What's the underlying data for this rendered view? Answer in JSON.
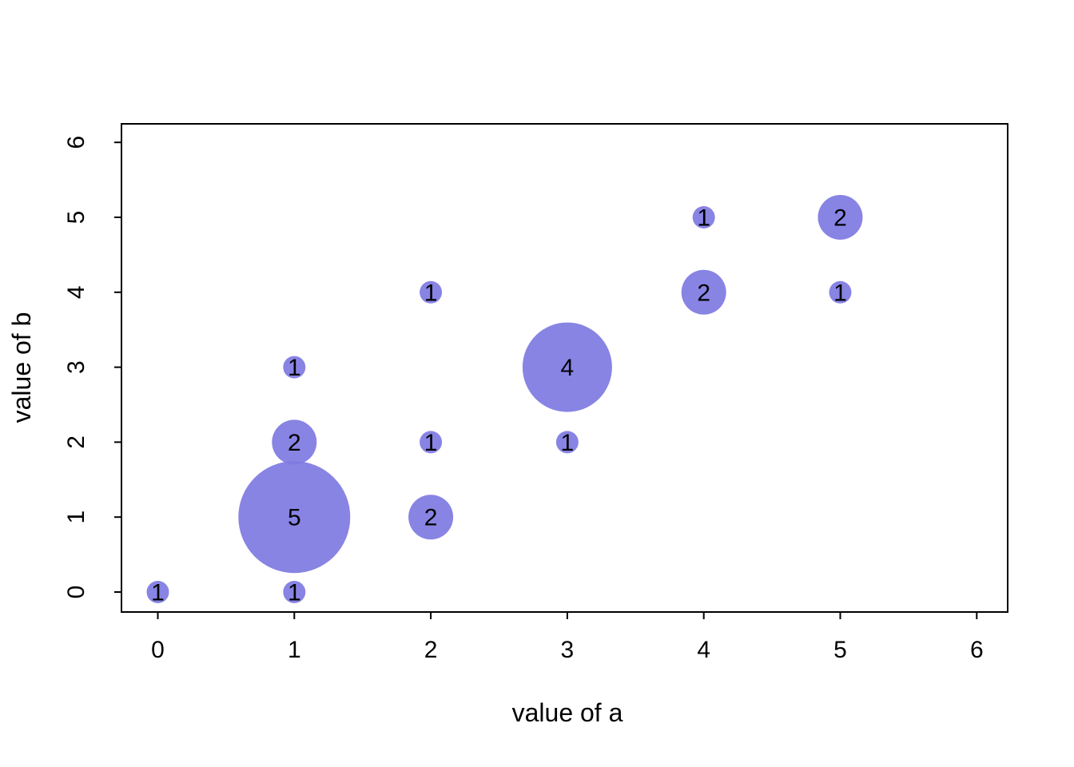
{
  "chart_data": {
    "type": "scatter",
    "subtype": "bubble",
    "title": "",
    "xlabel": "value of a",
    "ylabel": "value of b",
    "xlim": [
      0,
      6
    ],
    "ylim": [
      0,
      6
    ],
    "x_ticks": [
      0,
      1,
      2,
      3,
      4,
      5,
      6
    ],
    "y_ticks": [
      0,
      1,
      2,
      3,
      4,
      5,
      6
    ],
    "grid": false,
    "legend": "none",
    "bubble_color": "#7E7AE2",
    "bubble_label_color": "#000000",
    "axis_color": "#000000",
    "points": [
      {
        "a": 0,
        "b": 0,
        "count": 1
      },
      {
        "a": 1,
        "b": 0,
        "count": 1
      },
      {
        "a": 1,
        "b": 1,
        "count": 5
      },
      {
        "a": 1,
        "b": 2,
        "count": 2
      },
      {
        "a": 1,
        "b": 3,
        "count": 1
      },
      {
        "a": 2,
        "b": 1,
        "count": 2
      },
      {
        "a": 2,
        "b": 2,
        "count": 1
      },
      {
        "a": 2,
        "b": 4,
        "count": 1
      },
      {
        "a": 3,
        "b": 2,
        "count": 1
      },
      {
        "a": 3,
        "b": 3,
        "count": 4
      },
      {
        "a": 4,
        "b": 4,
        "count": 2
      },
      {
        "a": 4,
        "b": 5,
        "count": 1
      },
      {
        "a": 5,
        "b": 4,
        "count": 1
      },
      {
        "a": 5,
        "b": 5,
        "count": 2
      }
    ]
  }
}
